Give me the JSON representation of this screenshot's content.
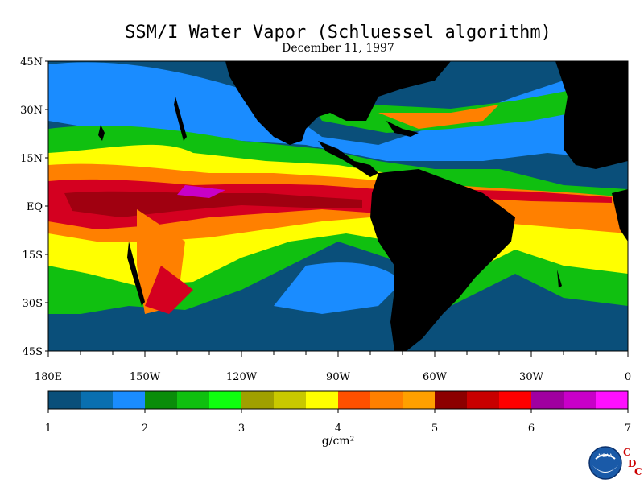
{
  "title": "SSM/I Water Vapor (Schluessel algorithm)",
  "subtitle": "December 11, 1997",
  "lat_labels": [
    "45N",
    "30N",
    "15N",
    "EQ",
    "15S",
    "30S",
    "45S"
  ],
  "lon_labels": [
    "180E",
    "150W",
    "120W",
    "90W",
    "60W",
    "30W",
    "0"
  ],
  "colorbar": {
    "colors": [
      "#0a4f7a",
      "#0a6fb0",
      "#1a8cff",
      "#0a8c0a",
      "#10c010",
      "#10ff10",
      "#a0a000",
      "#c8c800",
      "#ffff00",
      "#ff5000",
      "#ff8000",
      "#ffa000",
      "#8c0000",
      "#c80000",
      "#ff0000",
      "#a000a0",
      "#c800c8",
      "#ff10ff"
    ],
    "ticks": [
      "1",
      "2",
      "3",
      "4",
      "5",
      "6",
      "7"
    ],
    "unit": "g/cm²"
  },
  "logo": {
    "noaa_text": "NOAA",
    "cdc_letters": [
      "C",
      "D",
      "C"
    ]
  },
  "map_colors": {
    "ocean_dry": "#0a4f7a",
    "ocean_mid": "#1a8cff",
    "land": "#000000",
    "green": "#10c010",
    "bright_green": "#10ff10",
    "olive": "#a0a000",
    "yellow": "#ffff00",
    "orange": "#ff8000",
    "dark_red": "#a00010",
    "red": "#d40020",
    "magenta": "#c800c8"
  }
}
